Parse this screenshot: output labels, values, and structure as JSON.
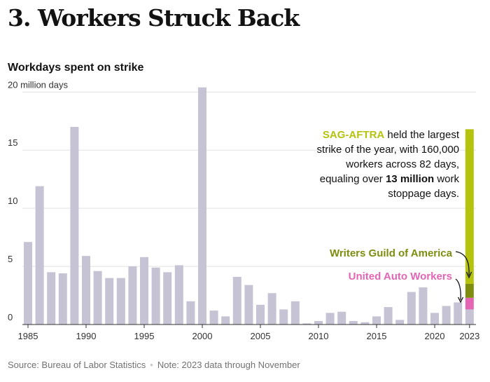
{
  "header": {
    "title": "3. Workers Struck Back",
    "subtitle": "Workdays spent on strike"
  },
  "footer": {
    "source": "Source: Bureau of Labor Statistics",
    "separator": "•",
    "note": "Note: 2023 data through November"
  },
  "colors": {
    "bar": "#c5c3d4",
    "gridline": "#e2e2e2",
    "axis": "#333333",
    "sag_aftra": "#b5c30e",
    "wga": "#7e8d0e",
    "uaw": "#e465b4",
    "other_2023": "#c5c3d4"
  },
  "chart_data": {
    "type": "bar",
    "title": "Workdays spent on strike",
    "xlabel": "",
    "ylabel": "",
    "ylim": [
      0,
      20.5
    ],
    "yticks": [
      {
        "value": 0,
        "label": "0"
      },
      {
        "value": 5,
        "label": "5"
      },
      {
        "value": 10,
        "label": "10"
      },
      {
        "value": 15,
        "label": "15"
      },
      {
        "value": 20,
        "label": "20 million days"
      }
    ],
    "xticks": [
      "1985",
      "1990",
      "1995",
      "2000",
      "2005",
      "2010",
      "2015",
      "2020",
      "2023"
    ],
    "grid": true,
    "categories": [
      1985,
      1986,
      1987,
      1988,
      1989,
      1990,
      1991,
      1992,
      1993,
      1994,
      1995,
      1996,
      1997,
      1998,
      1999,
      2000,
      2001,
      2002,
      2003,
      2004,
      2005,
      2006,
      2007,
      2008,
      2009,
      2010,
      2011,
      2012,
      2013,
      2014,
      2015,
      2016,
      2017,
      2018,
      2019,
      2020,
      2021,
      2022
    ],
    "values": [
      7.1,
      11.9,
      4.5,
      4.4,
      17.0,
      5.9,
      4.6,
      4.0,
      4.0,
      5.0,
      5.8,
      4.9,
      4.5,
      5.1,
      2.0,
      20.4,
      1.2,
      0.7,
      4.1,
      3.4,
      1.7,
      2.7,
      1.3,
      2.0,
      0.1,
      0.3,
      1.0,
      1.1,
      0.3,
      0.2,
      0.7,
      1.5,
      0.4,
      2.8,
      3.2,
      1.0,
      1.6,
      1.9
    ],
    "stacked_2023": {
      "year": 2023,
      "segments": [
        {
          "name": "Other",
          "value": 1.3
        },
        {
          "name": "United Auto Workers",
          "value": 1.0
        },
        {
          "name": "Writers Guild of America",
          "value": 1.2
        },
        {
          "name": "SAG-AFTRA",
          "value": 13.3
        }
      ]
    },
    "annotations": {
      "sag": {
        "label": "SAG-AFTRA",
        "text_line1_rest": " held the largest",
        "line2": "strike of the year, with 160,000",
        "line3": "workers across 82 days,",
        "line4_pre": "equaling over ",
        "line4_bold": "13 million",
        "line4_post": " work",
        "line5": "stoppage days."
      },
      "wga": {
        "label": "Writers Guild of America"
      },
      "uaw": {
        "label": "United Auto Workers"
      }
    }
  }
}
